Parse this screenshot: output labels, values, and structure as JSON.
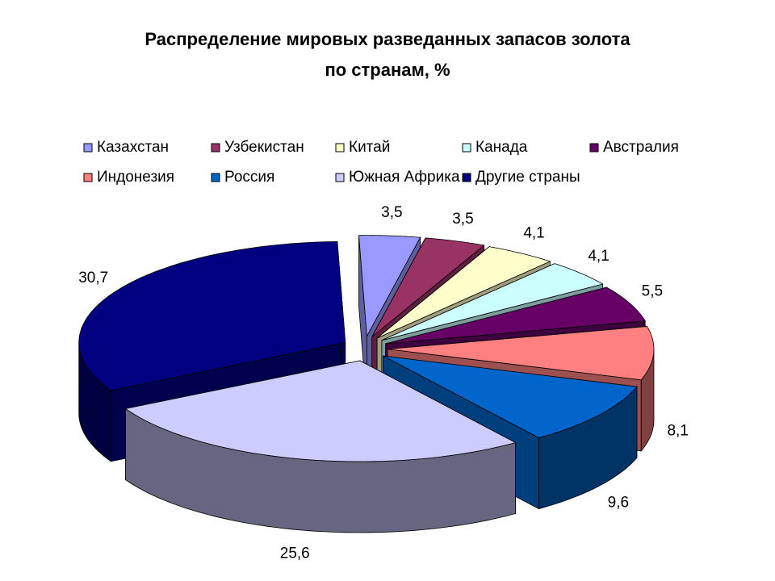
{
  "chart_data": {
    "type": "pie",
    "title_line1": "Распределение мировых разведанных запасов золота",
    "title_line2": "по странам, %",
    "legend_placement": "top",
    "slices": [
      {
        "label": "Казахстан",
        "value": 3.5,
        "color": "#9999ff"
      },
      {
        "label": "Узбекистан",
        "value": 3.5,
        "color": "#993366"
      },
      {
        "label": "Китай",
        "value": 4.1,
        "color": "#ffffcc"
      },
      {
        "label": "Канада",
        "value": 4.1,
        "color": "#ccffff"
      },
      {
        "label": "Австралия",
        "value": 5.5,
        "color": "#660066"
      },
      {
        "label": "Индонезия",
        "value": 8.1,
        "color": "#ff8080"
      },
      {
        "label": "Россия",
        "value": 9.6,
        "color": "#0066cc"
      },
      {
        "label": "Южная Африка",
        "value": 25.6,
        "color": "#ccccff"
      },
      {
        "label": "Другие  страны",
        "value": 30.7,
        "color": "#000080"
      }
    ],
    "value_labels": [
      "3,5",
      "3,5",
      "4,1",
      "4,1",
      "5,5",
      "8,1",
      "9,6",
      "25,6",
      "30,7"
    ]
  }
}
